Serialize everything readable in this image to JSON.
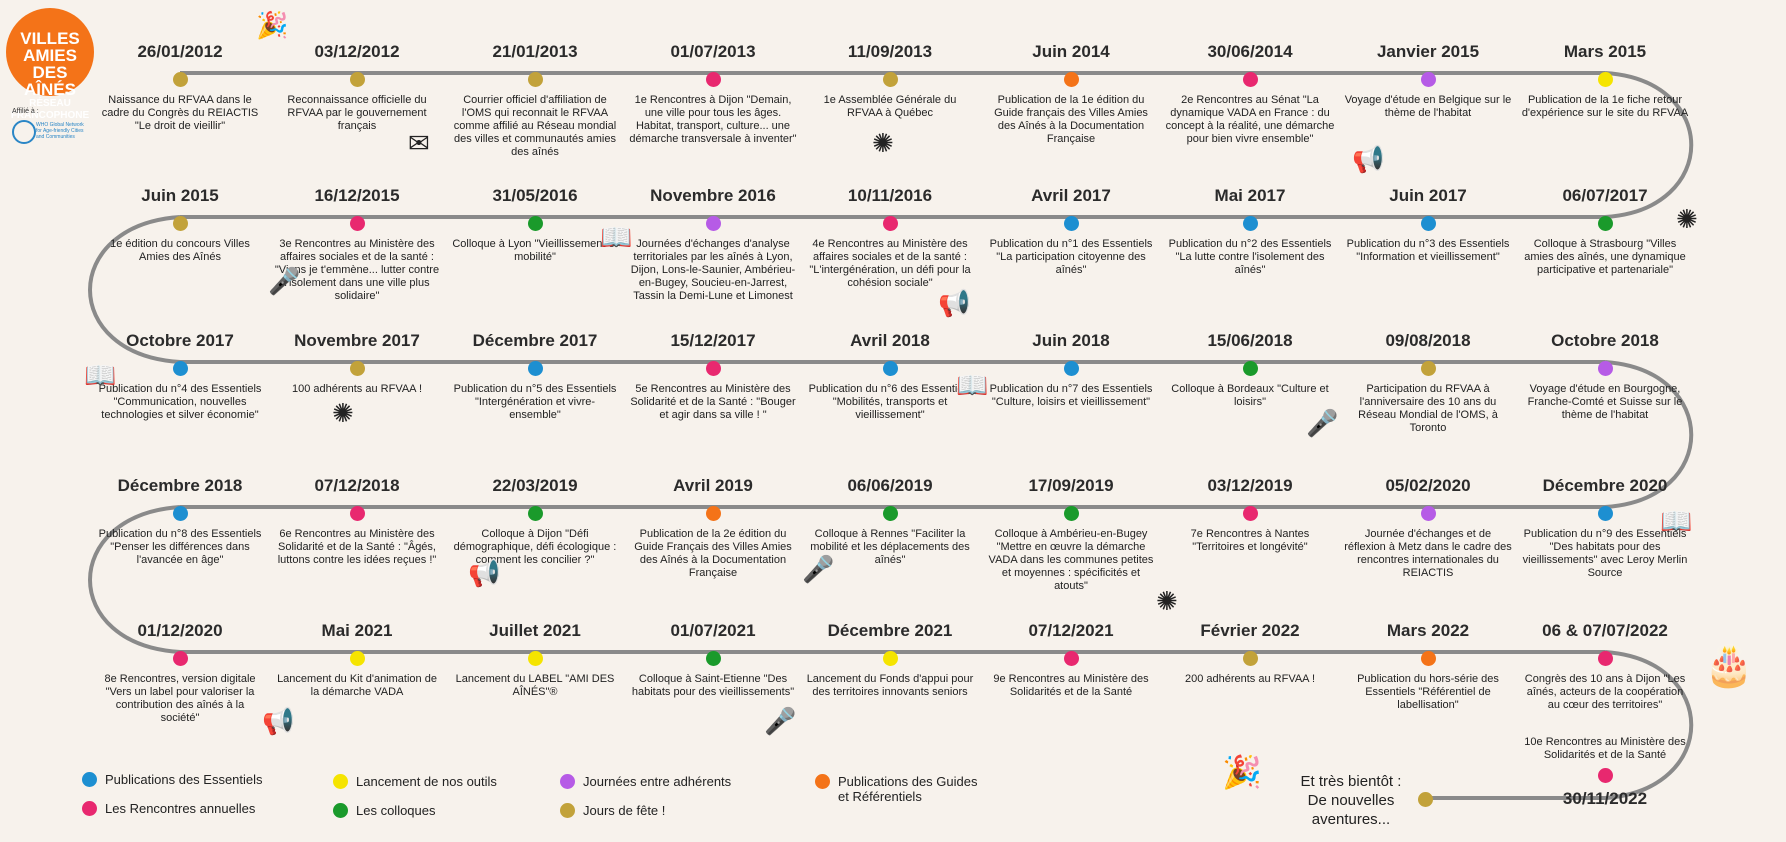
{
  "logo": {
    "line1": "VILLES AMIES DES AÎNÉS",
    "line2": "RÉSEAU FRANCOPHONE"
  },
  "affiliation": {
    "label": "Affilié à :",
    "who": "WHO Global Network for Age-friendly Cities and Communities"
  },
  "colors": {
    "blue": "#1d8fd1",
    "pink": "#e8286f",
    "yellow": "#f5e400",
    "purple": "#b65be6",
    "green": "#1a9a2b",
    "orange": "#f47318",
    "gold": "#c2a23a"
  },
  "rows": [
    [
      {
        "date": "26/01/2012",
        "color": "gold",
        "desc": "Naissance du RFVAA dans le cadre du Congrès du REIACTIS \"Le droit de vieillir\""
      },
      {
        "date": "03/12/2012",
        "color": "gold",
        "desc": "Reconnaissance officielle du RFVAA par le gouvernement français"
      },
      {
        "date": "21/01/2013",
        "color": "gold",
        "desc": "Courrier officiel d'affiliation de l'OMS qui reconnait le RFVAA comme affilié au Réseau mondial des villes et communautés amies des aînés"
      },
      {
        "date": "01/07/2013",
        "color": "pink",
        "desc": "1e Rencontres à Dijon \"Demain, une ville pour tous les âges. Habitat, transport, culture... une démarche transversale à inventer\""
      },
      {
        "date": "11/09/2013",
        "color": "gold",
        "desc": "1e Assemblée Générale du RFVAA à Québec"
      },
      {
        "date": "Juin 2014",
        "color": "orange",
        "desc": "Publication de la 1e édition du Guide français des Villes Amies des Aînés à la Documentation Française"
      },
      {
        "date": "30/06/2014",
        "color": "pink",
        "desc": "2e Rencontres au Sénat \"La dynamique VADA en France : du concept à la réalité, une démarche pour bien vivre ensemble\""
      },
      {
        "date": "Janvier 2015",
        "color": "purple",
        "desc": "Voyage d'étude en Belgique sur le thème de l'habitat"
      },
      {
        "date": "Mars 2015",
        "color": "yellow",
        "desc": "Publication de la 1e fiche retour d'expérience sur le site du RFVAA"
      }
    ],
    [
      {
        "date": "06/07/2017",
        "color": "green",
        "desc": "Colloque à Strasbourg \"Villes amies des aînés, une dynamique participative et partenariale\""
      },
      {
        "date": "Juin 2017",
        "color": "blue",
        "desc": "Publication du n°3 des Essentiels \"Information et vieillissement\""
      },
      {
        "date": "Mai 2017",
        "color": "blue",
        "desc": "Publication du n°2 des Essentiels \"La lutte contre l'isolement des aînés\""
      },
      {
        "date": "Avril 2017",
        "color": "blue",
        "desc": "Publication du n°1 des Essentiels \"La participation citoyenne des aînés\""
      },
      {
        "date": "10/11/2016",
        "color": "pink",
        "desc": "4e Rencontres au Ministère des affaires sociales et de la santé : \"L'intergénération, un défi pour la cohésion sociale\""
      },
      {
        "date": "Novembre 2016",
        "color": "purple",
        "desc": "Journées d'échanges d'analyse territoriales par les aînés à Lyon, Dijon, Lons-le-Saunier, Ambérieu-en-Bugey, Soucieu-en-Jarrest, Tassin la Demi-Lune et Limonest"
      },
      {
        "date": "31/05/2016",
        "color": "green",
        "desc": "Colloque à Lyon \"Vieillissement et mobilité\""
      },
      {
        "date": "16/12/2015",
        "color": "pink",
        "desc": "3e Rencontres au Ministère des affaires sociales et de la santé : \"Viens je t'emmène... lutter contre l'isolement dans une ville plus solidaire\""
      },
      {
        "date": "Juin 2015",
        "color": "gold",
        "desc": "1e édition du concours Villes Amies des Aînés"
      }
    ],
    [
      {
        "date": "Octobre 2017",
        "color": "blue",
        "desc": "Publication du n°4 des Essentiels \"Communication, nouvelles technologies et silver économie\""
      },
      {
        "date": "Novembre 2017",
        "color": "gold",
        "desc": "100 adhérents au RFVAA !"
      },
      {
        "date": "Décembre 2017",
        "color": "blue",
        "desc": "Publication du n°5 des Essentiels \"Intergénération et vivre-ensemble\""
      },
      {
        "date": "15/12/2017",
        "color": "pink",
        "desc": "5e Rencontres au Ministère des Solidarité et de la Santé : \"Bouger et agir dans sa ville ! \""
      },
      {
        "date": "Avril 2018",
        "color": "blue",
        "desc": "Publication du n°6 des Essentiels \"Mobilités, transports et vieillissement\""
      },
      {
        "date": "Juin 2018",
        "color": "blue",
        "desc": "Publication du n°7 des Essentiels \"Culture, loisirs et vieillissement\""
      },
      {
        "date": "15/06/2018",
        "color": "green",
        "desc": "Colloque à Bordeaux \"Culture et loisirs\""
      },
      {
        "date": "09/08/2018",
        "color": "gold",
        "desc": "Participation du RFVAA à l'anniversaire des 10 ans du Réseau Mondial de l'OMS, à Toronto"
      },
      {
        "date": "Octobre 2018",
        "color": "purple",
        "desc": "Voyage d'étude en Bourgogne, Franche-Comté et Suisse sur le thème de l'habitat"
      }
    ],
    [
      {
        "date": "Décembre 2020",
        "color": "blue",
        "desc": "Publication du n°9 des Essentiels \"Des habitats pour des vieillissements\" avec Leroy Merlin Source"
      },
      {
        "date": "05/02/2020",
        "color": "purple",
        "desc": "Journée d'échanges et de réflexion à Metz dans le cadre des rencontres internationales du REIACTIS"
      },
      {
        "date": "03/12/2019",
        "color": "pink",
        "desc": "7e Rencontres à Nantes \"Territoires et longévité\""
      },
      {
        "date": "17/09/2019",
        "color": "green",
        "desc": "Colloque à Ambérieu-en-Bugey \"Mettre en œuvre la démarche VADA dans les communes petites et moyennes : spécificités et atouts\""
      },
      {
        "date": "06/06/2019",
        "color": "green",
        "desc": "Colloque à Rennes \"Faciliter la mobilité et les déplacements des aînés\""
      },
      {
        "date": "Avril 2019",
        "color": "orange",
        "desc": "Publication de la 2e édition du Guide Français des Villes Amies des Aînés à la Documentation Française"
      },
      {
        "date": "22/03/2019",
        "color": "green",
        "desc": "Colloque à Dijon \"Défi démographique, défi écologique : comment les concilier ?\""
      },
      {
        "date": "07/12/2018",
        "color": "pink",
        "desc": "6e Rencontres au Ministère des Solidarité et de la Santé : \"Âgés, luttons contre les idées reçues !\""
      },
      {
        "date": "Décembre 2018",
        "color": "blue",
        "desc": "Publication du n°8 des Essentiels \"Penser les différences dans l'avancée en âge\""
      }
    ],
    [
      {
        "date": "01/12/2020",
        "color": "pink",
        "desc": "8e Rencontres, version digitale \"Vers un label pour valoriser la contribution des aînés à la société\""
      },
      {
        "date": "Mai 2021",
        "color": "yellow",
        "desc": "Lancement du Kit d'animation de la démarche VADA"
      },
      {
        "date": "Juillet 2021",
        "color": "yellow",
        "desc": "Lancement du LABEL \"AMI DES AÎNÉS\"®"
      },
      {
        "date": "01/07/2021",
        "color": "green",
        "desc": "Colloque à Saint-Etienne \"Des habitats pour des vieillissements\""
      },
      {
        "date": "Décembre 2021",
        "color": "yellow",
        "desc": "Lancement du Fonds d'appui pour des territoires innovants seniors"
      },
      {
        "date": "07/12/2021",
        "color": "pink",
        "desc": "9e Rencontres au Ministère des Solidarités et de la Santé"
      },
      {
        "date": "Février 2022",
        "color": "gold",
        "desc": "200 adhérents au RFVAA !"
      },
      {
        "date": "Mars 2022",
        "color": "orange",
        "desc": "Publication du hors-série des Essentiels \"Référentiel de labellisation\""
      },
      {
        "date": "06 & 07/07/2022",
        "color": "pink",
        "desc": "Congrès des 10 ans à Dijon \"Les aînés, acteurs de la coopération au cœur des territoires\""
      }
    ]
  ],
  "final_event": {
    "date": "30/11/2022",
    "color": "pink",
    "desc": "10e Rencontres au Ministère des Solidarités et de la Santé"
  },
  "future": {
    "text": "Et très bientôt : De nouvelles aventures..."
  },
  "legend": [
    {
      "color": "blue",
      "label": "Publications des Essentiels"
    },
    {
      "color": "pink",
      "label": "Les Rencontres annuelles"
    },
    {
      "color": "yellow",
      "label": "Lancement de nos outils"
    },
    {
      "color": "green",
      "label": "Les colloques"
    },
    {
      "color": "purple",
      "label": "Journées entre adhérents"
    },
    {
      "color": "gold",
      "label": "Jours de fête !"
    },
    {
      "color": "orange",
      "label": "Publications des Guides et Référentiels"
    }
  ],
  "icons": [
    "party-popper-icon",
    "envelope-icon",
    "fireworks-icon",
    "megaphone-icon",
    "book-icon",
    "microphone-icon",
    "birthday-cake-icon"
  ]
}
